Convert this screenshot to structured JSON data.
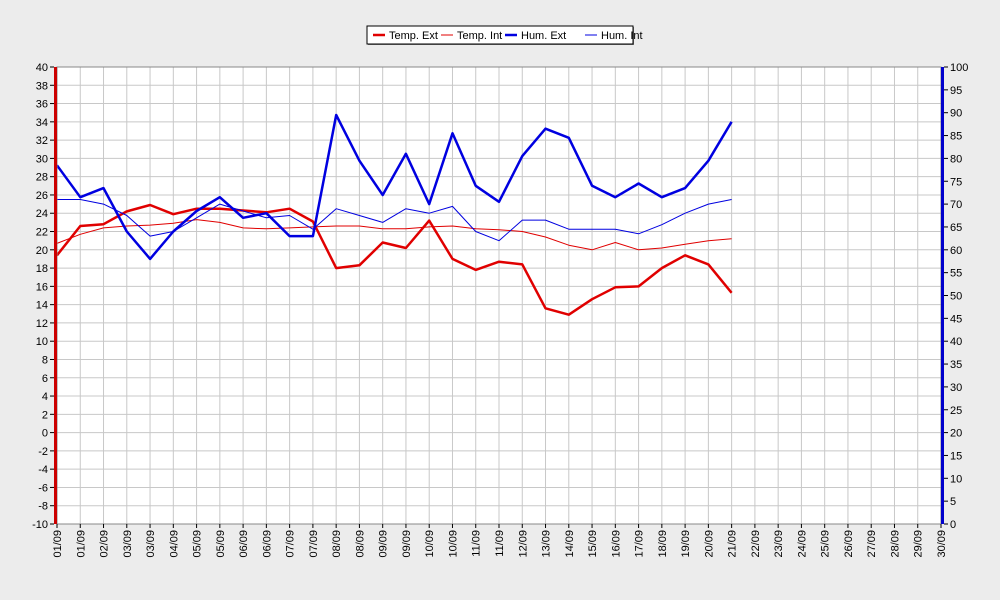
{
  "chart_data": {
    "type": "line",
    "categories": [
      "01/09",
      "01/09",
      "02/09",
      "03/09",
      "03/09",
      "04/09",
      "05/09",
      "05/09",
      "06/09",
      "06/09",
      "07/09",
      "07/09",
      "08/09",
      "08/09",
      "09/09",
      "09/09",
      "10/09",
      "10/09",
      "11/09",
      "11/09",
      "12/09",
      "13/09",
      "14/09",
      "15/09",
      "16/09",
      "17/09",
      "18/09",
      "19/09",
      "20/09",
      "21/09",
      "22/09",
      "23/09",
      "24/09",
      "25/09",
      "26/09",
      "27/09",
      "28/09",
      "29/09",
      "30/09"
    ],
    "left_axis": {
      "min": -10,
      "max": 40,
      "step": 2
    },
    "right_axis": {
      "min": 0,
      "max": 100,
      "step": 5
    },
    "grid": true,
    "legend_position": "top-center",
    "series": [
      {
        "name": "Temp. Ext",
        "color": "#e00000",
        "width": 2.5,
        "axis": "left",
        "points": [
          [
            0,
            19.4
          ],
          [
            1,
            22.6
          ],
          [
            2,
            22.8
          ],
          [
            3,
            24.2
          ],
          [
            4,
            24.9
          ],
          [
            5,
            23.9
          ],
          [
            6,
            24.5
          ],
          [
            7,
            24.5
          ],
          [
            8,
            24.3
          ],
          [
            9,
            24.1
          ],
          [
            10,
            24.5
          ],
          [
            11,
            23.1
          ],
          [
            12,
            18.0
          ],
          [
            13,
            18.3
          ],
          [
            14,
            20.8
          ],
          [
            15,
            20.2
          ],
          [
            16,
            23.2
          ],
          [
            17,
            19.0
          ],
          [
            18,
            17.8
          ],
          [
            19,
            18.7
          ],
          [
            20,
            18.4
          ],
          [
            21,
            13.6
          ],
          [
            22,
            12.9
          ],
          [
            23,
            14.6
          ],
          [
            24,
            15.9
          ],
          [
            25,
            16.0
          ],
          [
            26,
            18.0
          ],
          [
            27,
            19.4
          ],
          [
            28,
            18.4
          ],
          [
            29,
            15.3
          ]
        ]
      },
      {
        "name": "Temp. Int",
        "color": "#e00000",
        "width": 1,
        "axis": "left",
        "points": [
          [
            0,
            20.7
          ],
          [
            1,
            21.7
          ],
          [
            2,
            22.4
          ],
          [
            3,
            22.6
          ],
          [
            4,
            22.7
          ],
          [
            5,
            22.9
          ],
          [
            6,
            23.3
          ],
          [
            7,
            23.0
          ],
          [
            8,
            22.4
          ],
          [
            9,
            22.3
          ],
          [
            10,
            22.4
          ],
          [
            11,
            22.5
          ],
          [
            12,
            22.6
          ],
          [
            13,
            22.6
          ],
          [
            14,
            22.3
          ],
          [
            15,
            22.3
          ],
          [
            16,
            22.5
          ],
          [
            17,
            22.6
          ],
          [
            18,
            22.3
          ],
          [
            19,
            22.2
          ],
          [
            20,
            22.0
          ],
          [
            21,
            21.4
          ],
          [
            22,
            20.5
          ],
          [
            23,
            20.0
          ],
          [
            24,
            20.8
          ],
          [
            25,
            20.0
          ],
          [
            26,
            20.2
          ],
          [
            27,
            20.6
          ],
          [
            28,
            21.0
          ],
          [
            29,
            21.2
          ]
        ]
      },
      {
        "name": "Hum. Ext",
        "color": "#0000e0",
        "width": 2.5,
        "axis": "right",
        "points": [
          [
            0,
            78.5
          ],
          [
            1,
            71.5
          ],
          [
            2,
            73.5
          ],
          [
            3,
            64
          ],
          [
            4,
            58
          ],
          [
            5,
            64
          ],
          [
            6,
            68.5
          ],
          [
            7,
            71.5
          ],
          [
            8,
            67
          ],
          [
            9,
            68
          ],
          [
            10,
            63
          ],
          [
            11,
            63
          ],
          [
            12,
            89.5
          ],
          [
            13,
            79.5
          ],
          [
            14,
            72
          ],
          [
            15,
            81
          ],
          [
            16,
            70
          ],
          [
            17,
            85.5
          ],
          [
            18,
            74
          ],
          [
            19,
            70.5
          ],
          [
            20,
            80.5
          ],
          [
            21,
            86.5
          ],
          [
            22,
            84.5
          ],
          [
            23,
            74
          ],
          [
            24,
            71.5
          ],
          [
            25,
            74.5
          ],
          [
            26,
            71.5
          ],
          [
            27,
            73.5
          ],
          [
            28,
            79.5
          ],
          [
            29,
            88
          ]
        ]
      },
      {
        "name": "Hum. Int",
        "color": "#0000e0",
        "width": 1,
        "axis": "right",
        "points": [
          [
            0,
            71
          ],
          [
            1,
            71
          ],
          [
            2,
            70
          ],
          [
            3,
            67.5
          ],
          [
            4,
            63
          ],
          [
            5,
            64
          ],
          [
            6,
            67
          ],
          [
            7,
            70
          ],
          [
            8,
            68.5
          ],
          [
            9,
            67
          ],
          [
            10,
            67.5
          ],
          [
            11,
            64.5
          ],
          [
            12,
            69
          ],
          [
            13,
            67.5
          ],
          [
            14,
            66
          ],
          [
            15,
            69
          ],
          [
            16,
            68
          ],
          [
            17,
            69.5
          ],
          [
            18,
            64
          ],
          [
            19,
            62
          ],
          [
            20,
            66.5
          ],
          [
            21,
            66.5
          ],
          [
            22,
            64.5
          ],
          [
            23,
            64.5
          ],
          [
            24,
            64.5
          ],
          [
            25,
            63.5
          ],
          [
            26,
            65.5
          ],
          [
            27,
            68
          ],
          [
            28,
            70
          ],
          [
            29,
            71
          ]
        ]
      }
    ]
  }
}
